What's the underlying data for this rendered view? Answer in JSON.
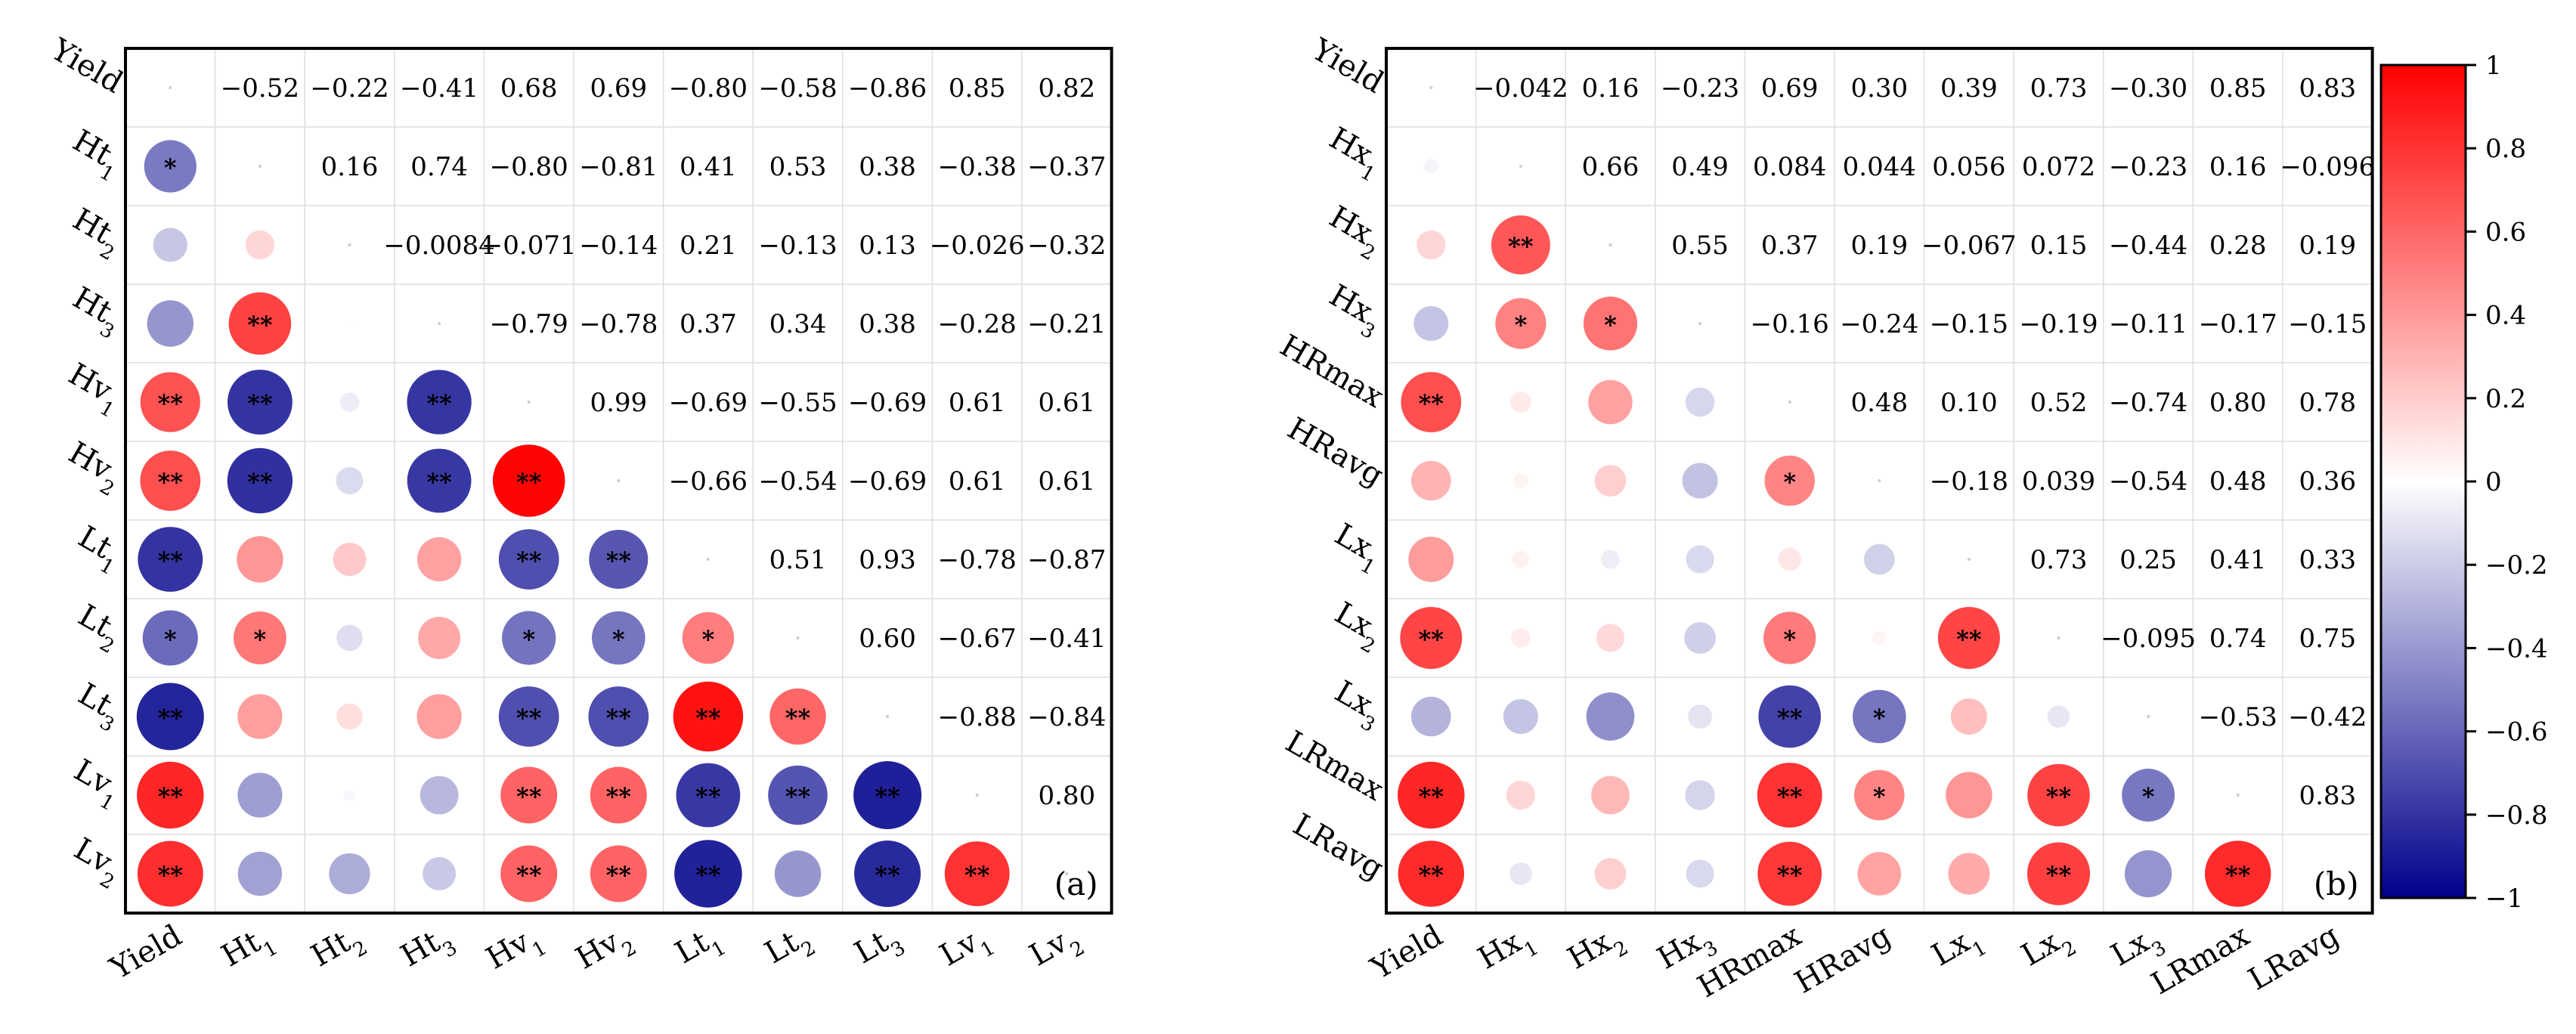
{
  "chart_data": [
    {
      "type": "heatmap",
      "title": "",
      "panel_label": "(a)",
      "variables": [
        {
          "base": "Yield",
          "sub": ""
        },
        {
          "base": "Ht",
          "sub": "1"
        },
        {
          "base": "Ht",
          "sub": "2"
        },
        {
          "base": "Ht",
          "sub": "3"
        },
        {
          "base": "Hv",
          "sub": "1"
        },
        {
          "base": "Hv",
          "sub": "2"
        },
        {
          "base": "Lt",
          "sub": "1"
        },
        {
          "base": "Lt",
          "sub": "2"
        },
        {
          "base": "Lt",
          "sub": "3"
        },
        {
          "base": "Lv",
          "sub": "1"
        },
        {
          "base": "Lv",
          "sub": "2"
        }
      ],
      "upper_labels": [
        [
          "",
          "−0.52",
          "−0.22",
          "−0.41",
          "0.68",
          "0.69",
          "−0.80",
          "−0.58",
          "−0.86",
          "0.85",
          "0.82"
        ],
        [
          "",
          "",
          "0.16",
          "0.74",
          "−0.80",
          "−0.81",
          "0.41",
          "0.53",
          "0.38",
          "−0.38",
          "−0.37"
        ],
        [
          "",
          "",
          "",
          "−0.0084",
          "−0.071",
          "−0.14",
          "0.21",
          "−0.13",
          "0.13",
          "−0.026",
          "−0.32"
        ],
        [
          "",
          "",
          "",
          "",
          "−0.79",
          "−0.78",
          "0.37",
          "0.34",
          "0.38",
          "−0.28",
          "−0.21"
        ],
        [
          "",
          "",
          "",
          "",
          "",
          "0.99",
          "−0.69",
          "−0.55",
          "−0.69",
          "0.61",
          "0.61"
        ],
        [
          "",
          "",
          "",
          "",
          "",
          "",
          "−0.66",
          "−0.54",
          "−0.69",
          "0.61",
          "0.61"
        ],
        [
          "",
          "",
          "",
          "",
          "",
          "",
          "",
          "0.51",
          "0.93",
          "−0.78",
          "−0.87"
        ],
        [
          "",
          "",
          "",
          "",
          "",
          "",
          "",
          "",
          "0.60",
          "−0.67",
          "−0.41"
        ],
        [
          "",
          "",
          "",
          "",
          "",
          "",
          "",
          "",
          "",
          "−0.88",
          "−0.84"
        ],
        [
          "",
          "",
          "",
          "",
          "",
          "",
          "",
          "",
          "",
          "",
          "0.80"
        ],
        [
          "",
          "",
          "",
          "",
          "",
          "",
          "",
          "",
          "",
          "",
          ""
        ]
      ],
      "matrix": [
        [
          1,
          -0.52,
          -0.22,
          -0.41,
          0.68,
          0.69,
          -0.8,
          -0.58,
          -0.86,
          0.85,
          0.82
        ],
        [
          -0.52,
          1,
          0.16,
          0.74,
          -0.8,
          -0.81,
          0.41,
          0.53,
          0.38,
          -0.38,
          -0.37
        ],
        [
          -0.22,
          0.16,
          1,
          -0.0084,
          -0.071,
          -0.14,
          0.21,
          -0.13,
          0.13,
          -0.026,
          -0.32
        ],
        [
          -0.41,
          0.74,
          -0.0084,
          1,
          -0.79,
          -0.78,
          0.37,
          0.34,
          0.38,
          -0.28,
          -0.21
        ],
        [
          0.68,
          -0.8,
          -0.071,
          -0.79,
          1,
          0.99,
          -0.69,
          -0.55,
          -0.69,
          0.61,
          0.61
        ],
        [
          0.69,
          -0.81,
          -0.14,
          -0.78,
          0.99,
          1,
          -0.66,
          -0.54,
          -0.69,
          0.61,
          0.61
        ],
        [
          -0.8,
          0.41,
          0.21,
          0.37,
          -0.69,
          -0.66,
          1,
          0.51,
          0.93,
          -0.78,
          -0.87
        ],
        [
          -0.58,
          0.53,
          -0.13,
          0.34,
          -0.55,
          -0.54,
          0.51,
          1,
          0.6,
          -0.67,
          -0.41
        ],
        [
          -0.86,
          0.38,
          0.13,
          0.38,
          -0.69,
          -0.69,
          0.93,
          0.6,
          1,
          -0.88,
          -0.84
        ],
        [
          0.85,
          -0.38,
          -0.026,
          -0.28,
          0.61,
          0.61,
          -0.78,
          -0.67,
          -0.88,
          1,
          0.8
        ],
        [
          0.82,
          -0.37,
          -0.32,
          -0.21,
          0.61,
          0.61,
          -0.87,
          -0.41,
          -0.84,
          0.8,
          1
        ]
      ],
      "significance": [
        [
          "",
          "",
          "",
          "",
          "",
          "",
          "",
          "",
          "",
          "",
          ""
        ],
        [
          "*",
          "",
          "",
          "",
          "",
          "",
          "",
          "",
          "",
          "",
          ""
        ],
        [
          "",
          "",
          "",
          "",
          "",
          "",
          "",
          "",
          "",
          "",
          ""
        ],
        [
          "",
          "**",
          "",
          "",
          "",
          "",
          "",
          "",
          "",
          "",
          ""
        ],
        [
          "**",
          "**",
          "",
          "**",
          "",
          "",
          "",
          "",
          "",
          "",
          ""
        ],
        [
          "**",
          "**",
          "",
          "**",
          "**",
          "",
          "",
          "",
          "",
          "",
          ""
        ],
        [
          "**",
          "",
          "",
          "",
          "**",
          "**",
          "",
          "",
          "",
          "",
          ""
        ],
        [
          "*",
          "*",
          "",
          "",
          "*",
          "*",
          "*",
          "",
          "",
          "",
          ""
        ],
        [
          "**",
          "",
          "",
          "",
          "**",
          "**",
          "**",
          "**",
          "",
          "",
          ""
        ],
        [
          "**",
          "",
          "",
          "",
          "**",
          "**",
          "**",
          "**",
          "**",
          "",
          ""
        ],
        [
          "**",
          "",
          "",
          "",
          "**",
          "**",
          "**",
          "",
          "**",
          "**",
          ""
        ]
      ]
    },
    {
      "type": "heatmap",
      "title": "",
      "panel_label": "(b)",
      "variables": [
        {
          "base": "Yield",
          "sub": ""
        },
        {
          "base": "Hx",
          "sub": "1"
        },
        {
          "base": "Hx",
          "sub": "2"
        },
        {
          "base": "Hx",
          "sub": "3"
        },
        {
          "base": "HRmax",
          "sub": ""
        },
        {
          "base": "HRavg",
          "sub": ""
        },
        {
          "base": "Lx",
          "sub": "1"
        },
        {
          "base": "Lx",
          "sub": "2"
        },
        {
          "base": "Lx",
          "sub": "3"
        },
        {
          "base": "LRmax",
          "sub": ""
        },
        {
          "base": "LRavg",
          "sub": ""
        }
      ],
      "upper_labels": [
        [
          "",
          "−0.042",
          "0.16",
          "−0.23",
          "0.69",
          "0.30",
          "0.39",
          "0.73",
          "−0.30",
          "0.85",
          "0.83"
        ],
        [
          "",
          "",
          "0.66",
          "0.49",
          "0.084",
          "0.044",
          "0.056",
          "0.072",
          "−0.23",
          "0.16",
          "−0.096"
        ],
        [
          "",
          "",
          "",
          "0.55",
          "0.37",
          "0.19",
          "−0.067",
          "0.15",
          "−0.44",
          "0.28",
          "0.19"
        ],
        [
          "",
          "",
          "",
          "",
          "−0.16",
          "−0.24",
          "−0.15",
          "−0.19",
          "−0.11",
          "−0.17",
          "−0.15"
        ],
        [
          "",
          "",
          "",
          "",
          "",
          "0.48",
          "0.10",
          "0.52",
          "−0.74",
          "0.80",
          "0.78"
        ],
        [
          "",
          "",
          "",
          "",
          "",
          "",
          "−0.18",
          "0.039",
          "−0.54",
          "0.48",
          "0.36"
        ],
        [
          "",
          "",
          "",
          "",
          "",
          "",
          "",
          "0.73",
          "0.25",
          "0.41",
          "0.33"
        ],
        [
          "",
          "",
          "",
          "",
          "",
          "",
          "",
          "",
          "−0.095",
          "0.74",
          "0.75"
        ],
        [
          "",
          "",
          "",
          "",
          "",
          "",
          "",
          "",
          "",
          "−0.53",
          "−0.42"
        ],
        [
          "",
          "",
          "",
          "",
          "",
          "",
          "",
          "",
          "",
          "",
          "0.83"
        ],
        [
          "",
          "",
          "",
          "",
          "",
          "",
          "",
          "",
          "",
          "",
          ""
        ]
      ],
      "matrix": [
        [
          1,
          -0.042,
          0.16,
          -0.23,
          0.69,
          0.3,
          0.39,
          0.73,
          -0.3,
          0.85,
          0.83
        ],
        [
          -0.042,
          1,
          0.66,
          0.49,
          0.084,
          0.044,
          0.056,
          0.072,
          -0.23,
          0.16,
          -0.096
        ],
        [
          0.16,
          0.66,
          1,
          0.55,
          0.37,
          0.19,
          -0.067,
          0.15,
          -0.44,
          0.28,
          0.19
        ],
        [
          -0.23,
          0.49,
          0.55,
          1,
          -0.16,
          -0.24,
          -0.15,
          -0.19,
          -0.11,
          -0.17,
          -0.15
        ],
        [
          0.69,
          0.084,
          0.37,
          -0.16,
          1,
          0.48,
          0.1,
          0.52,
          -0.74,
          0.8,
          0.78
        ],
        [
          0.3,
          0.044,
          0.19,
          -0.24,
          0.48,
          1,
          -0.18,
          0.039,
          -0.54,
          0.48,
          0.36
        ],
        [
          0.39,
          0.056,
          -0.067,
          -0.15,
          0.1,
          -0.18,
          1,
          0.73,
          0.25,
          0.41,
          0.33
        ],
        [
          0.73,
          0.072,
          0.15,
          -0.19,
          0.52,
          0.039,
          0.73,
          1,
          -0.095,
          0.74,
          0.75
        ],
        [
          -0.3,
          -0.23,
          -0.44,
          -0.11,
          -0.74,
          -0.54,
          0.25,
          -0.095,
          1,
          -0.53,
          -0.42
        ],
        [
          0.85,
          0.16,
          0.28,
          -0.17,
          0.8,
          0.48,
          0.41,
          0.74,
          -0.53,
          1,
          0.83
        ],
        [
          0.83,
          -0.096,
          0.19,
          -0.15,
          0.78,
          0.36,
          0.33,
          0.75,
          -0.42,
          0.83,
          1
        ]
      ],
      "significance": [
        [
          "",
          "",
          "",
          "",
          "",
          "",
          "",
          "",
          "",
          "",
          ""
        ],
        [
          "",
          "",
          "",
          "",
          "",
          "",
          "",
          "",
          "",
          "",
          ""
        ],
        [
          "",
          "**",
          "",
          "",
          "",
          "",
          "",
          "",
          "",
          "",
          ""
        ],
        [
          "",
          "*",
          "*",
          "",
          "",
          "",
          "",
          "",
          "",
          "",
          ""
        ],
        [
          "**",
          "",
          "",
          "",
          "",
          "",
          "",
          "",
          "",
          "",
          ""
        ],
        [
          "",
          "",
          "",
          "",
          "*",
          "",
          "",
          "",
          "",
          "",
          ""
        ],
        [
          "",
          "",
          "",
          "",
          "",
          "",
          "",
          "",
          "",
          "",
          ""
        ],
        [
          "**",
          "",
          "",
          "",
          "*",
          "",
          "**",
          "",
          "",
          "",
          ""
        ],
        [
          "",
          "",
          "",
          "",
          "**",
          "*",
          "",
          "",
          "",
          "",
          ""
        ],
        [
          "**",
          "",
          "",
          "",
          "**",
          "*",
          "",
          "**",
          "*",
          "",
          ""
        ],
        [
          "**",
          "",
          "",
          "",
          "**",
          "",
          "",
          "**",
          "",
          "**",
          ""
        ]
      ]
    }
  ],
  "colorbar": {
    "range": [
      -1,
      1
    ],
    "ticks": [
      "1",
      "0.8",
      "0.6",
      "0.4",
      "0.2",
      "0",
      "−0.2",
      "−0.4",
      "−0.6",
      "−0.8",
      "−1"
    ],
    "tick_values": [
      1,
      0.8,
      0.6,
      0.4,
      0.2,
      0,
      -0.2,
      -0.4,
      -0.6,
      -0.8,
      -1
    ],
    "colors": {
      "negative": "#00008b",
      "zero": "#ffffff",
      "positive": "#ff0000"
    }
  },
  "style": {
    "grid_color": "#dddddd",
    "frame_color": "#000000"
  }
}
